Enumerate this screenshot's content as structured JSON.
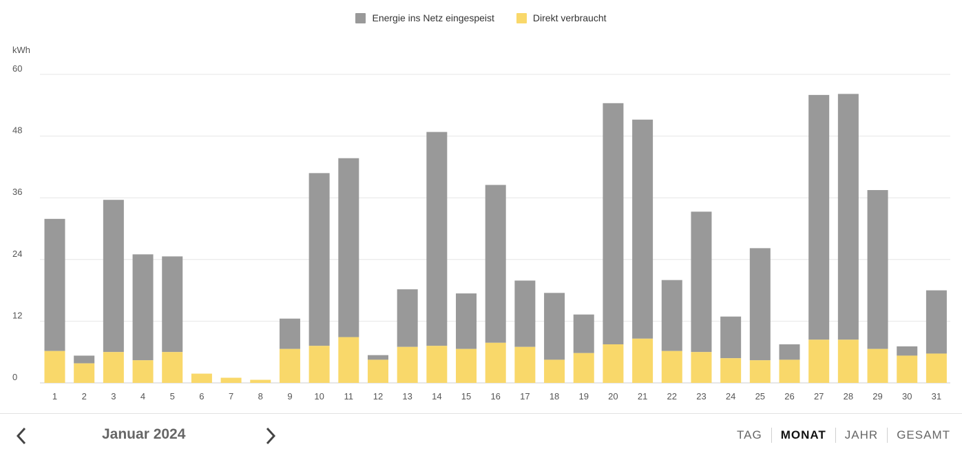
{
  "legend": {
    "grid_label": "Energie ins Netz eingespeist",
    "direct_label": "Direkt verbraucht"
  },
  "colors": {
    "grid": "#999999",
    "direct": "#f9d86a",
    "gridline": "#e6e6e6"
  },
  "chart_data": {
    "type": "bar",
    "stacked": true,
    "ylabel": "kWh",
    "ylim": [
      0,
      60
    ],
    "yticks": [
      0,
      12,
      24,
      36,
      48,
      60
    ],
    "categories": [
      "1",
      "2",
      "3",
      "4",
      "5",
      "6",
      "7",
      "8",
      "9",
      "10",
      "11",
      "12",
      "13",
      "14",
      "15",
      "16",
      "17",
      "18",
      "19",
      "20",
      "21",
      "22",
      "23",
      "24",
      "25",
      "26",
      "27",
      "28",
      "29",
      "30",
      "31"
    ],
    "series": [
      {
        "name": "Direkt verbraucht",
        "values": [
          6.2,
          3.8,
          6.0,
          4.4,
          6.0,
          1.8,
          1.0,
          0.6,
          6.6,
          7.2,
          8.9,
          4.5,
          7.0,
          7.2,
          6.6,
          7.8,
          7.0,
          4.5,
          5.8,
          7.5,
          8.6,
          6.2,
          6.0,
          4.8,
          4.4,
          4.5,
          8.4,
          8.4,
          6.6,
          5.3,
          5.7
        ]
      },
      {
        "name": "Energie ins Netz eingespeist",
        "values": [
          25.7,
          1.5,
          29.6,
          20.6,
          18.6,
          0,
          0,
          0,
          5.9,
          33.6,
          34.8,
          0.9,
          11.2,
          41.6,
          10.8,
          30.7,
          12.9,
          13.0,
          7.5,
          46.9,
          42.6,
          13.8,
          27.3,
          8.1,
          21.8,
          3.0,
          47.6,
          47.8,
          30.9,
          1.8,
          12.3
        ]
      }
    ]
  },
  "period": {
    "label": "Januar 2024"
  },
  "tabs": [
    {
      "label": "TAG",
      "active": false
    },
    {
      "label": "MONAT",
      "active": true
    },
    {
      "label": "JAHR",
      "active": false
    },
    {
      "label": "GESAMT",
      "active": false
    }
  ],
  "icons": {
    "prev": "chevron-left-icon",
    "next": "chevron-right-icon"
  }
}
